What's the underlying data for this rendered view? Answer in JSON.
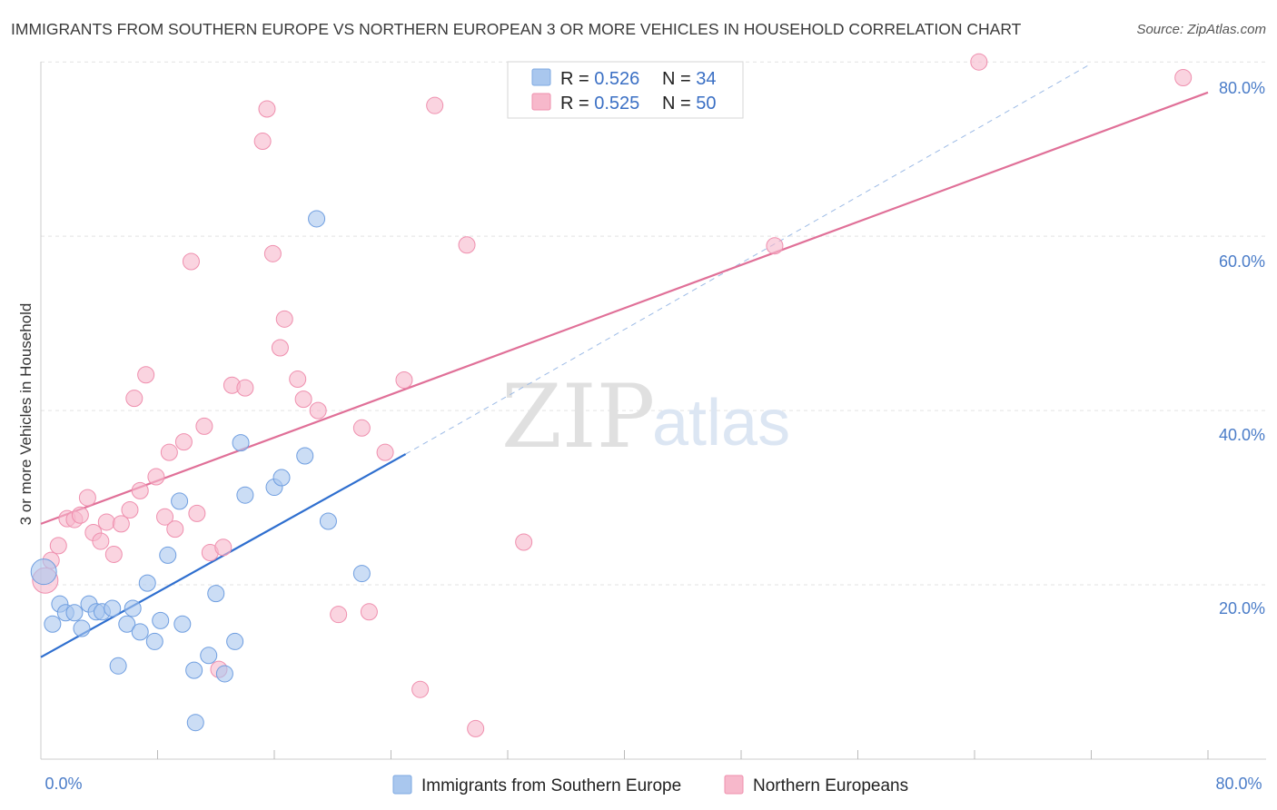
{
  "header": {
    "title": "IMMIGRANTS FROM SOUTHERN EUROPE VS NORTHERN EUROPEAN 3 OR MORE VEHICLES IN HOUSEHOLD CORRELATION CHART",
    "source": "Source: ZipAtlas.com"
  },
  "watermark": {
    "zip": "ZIP",
    "atlas": "atlas"
  },
  "legend": {
    "series": [
      {
        "r_label": "R = ",
        "r_value": "0.526",
        "n_label": "N = ",
        "n_value": "34",
        "color": "#a9c7ee"
      },
      {
        "r_label": "R = ",
        "r_value": "0.525",
        "n_label": "N = ",
        "n_value": "50",
        "color": "#f7b8cb"
      }
    ]
  },
  "chart_data": {
    "type": "scatter",
    "title": "IMMIGRANTS FROM SOUTHERN EUROPE VS NORTHERN EUROPEAN 3 OR MORE VEHICLES IN HOUSEHOLD CORRELATION CHART",
    "xlabel": "",
    "ylabel": "3 or more Vehicles in Household",
    "xlim": [
      0,
      80
    ],
    "ylim": [
      0,
      82
    ],
    "x_tick_labels": [
      "0.0%",
      "80.0%"
    ],
    "y_ticks": [
      20,
      40,
      60,
      80
    ],
    "y_tick_labels": [
      "20.0%",
      "40.0%",
      "60.0%",
      "80.0%"
    ],
    "grid": true,
    "series": [
      {
        "name": "Immigrants from Southern Europe",
        "color": "#a9c7ee",
        "stroke": "#6f9ee0",
        "trend_color": "#2f6fcf",
        "trend": {
          "x0": 0,
          "y0": 11.7,
          "x1": 25.0,
          "y1": 35.0,
          "dash_to_x": 72.0,
          "dash_to_y": 79.8
        },
        "points": [
          [
            0.2,
            21.5
          ],
          [
            0.8,
            15.5
          ],
          [
            1.3,
            17.8
          ],
          [
            1.7,
            16.8
          ],
          [
            2.3,
            16.8
          ],
          [
            2.8,
            15.0
          ],
          [
            3.3,
            17.8
          ],
          [
            3.8,
            16.9
          ],
          [
            4.2,
            16.9
          ],
          [
            4.9,
            17.3
          ],
          [
            5.3,
            10.7
          ],
          [
            5.9,
            15.5
          ],
          [
            6.3,
            17.3
          ],
          [
            6.8,
            14.6
          ],
          [
            7.3,
            20.2
          ],
          [
            7.8,
            13.5
          ],
          [
            8.2,
            15.9
          ],
          [
            8.7,
            23.4
          ],
          [
            9.5,
            29.6
          ],
          [
            9.7,
            15.5
          ],
          [
            10.5,
            10.2
          ],
          [
            10.6,
            4.2
          ],
          [
            11.5,
            11.9
          ],
          [
            12.0,
            19.0
          ],
          [
            12.6,
            9.8
          ],
          [
            13.3,
            13.5
          ],
          [
            13.7,
            36.3
          ],
          [
            14.0,
            30.3
          ],
          [
            16.0,
            31.2
          ],
          [
            16.5,
            32.3
          ],
          [
            18.1,
            34.8
          ],
          [
            18.9,
            62.0
          ],
          [
            19.7,
            27.3
          ],
          [
            22.0,
            21.3
          ]
        ]
      },
      {
        "name": "Northern Europeans",
        "color": "#f7b8cb",
        "stroke": "#ef8fae",
        "trend_color": "#e07098",
        "trend": {
          "x0": 0,
          "y0": 27.0,
          "x1": 80.0,
          "y1": 76.5
        },
        "points": [
          [
            0.3,
            20.5
          ],
          [
            0.7,
            22.8
          ],
          [
            1.2,
            24.5
          ],
          [
            1.8,
            27.6
          ],
          [
            2.3,
            27.5
          ],
          [
            2.7,
            28.0
          ],
          [
            3.2,
            30.0
          ],
          [
            3.6,
            26.0
          ],
          [
            4.1,
            25.0
          ],
          [
            4.5,
            27.2
          ],
          [
            5.0,
            23.5
          ],
          [
            5.5,
            27.0
          ],
          [
            6.1,
            28.6
          ],
          [
            6.4,
            41.4
          ],
          [
            6.8,
            30.8
          ],
          [
            7.2,
            44.1
          ],
          [
            7.9,
            32.4
          ],
          [
            8.5,
            27.8
          ],
          [
            8.8,
            35.2
          ],
          [
            9.2,
            26.4
          ],
          [
            9.8,
            36.4
          ],
          [
            10.3,
            57.1
          ],
          [
            10.7,
            28.2
          ],
          [
            11.2,
            38.2
          ],
          [
            11.6,
            23.7
          ],
          [
            12.2,
            10.3
          ],
          [
            12.5,
            24.3
          ],
          [
            13.1,
            42.9
          ],
          [
            14.0,
            42.6
          ],
          [
            15.2,
            70.9
          ],
          [
            15.5,
            74.6
          ],
          [
            15.9,
            58.0
          ],
          [
            16.4,
            47.2
          ],
          [
            16.7,
            50.5
          ],
          [
            17.6,
            43.6
          ],
          [
            18.0,
            41.3
          ],
          [
            19.0,
            40.0
          ],
          [
            20.4,
            16.6
          ],
          [
            22.0,
            38.0
          ],
          [
            22.5,
            16.9
          ],
          [
            23.6,
            35.2
          ],
          [
            24.9,
            43.5
          ],
          [
            26.0,
            8.0
          ],
          [
            27.0,
            75.0
          ],
          [
            29.2,
            59.0
          ],
          [
            29.8,
            3.5
          ],
          [
            33.1,
            24.9
          ],
          [
            50.3,
            58.9
          ],
          [
            64.3,
            80.0
          ],
          [
            78.3,
            78.2
          ]
        ]
      }
    ]
  }
}
